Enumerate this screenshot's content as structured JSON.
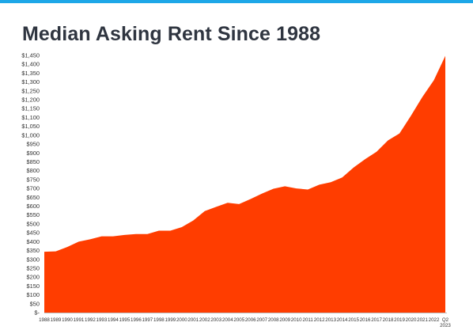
{
  "colors": {
    "top_bar": "#1ea7e8",
    "area_fill": "#ff3d00",
    "title_text": "#2f3540",
    "axis_line": "#bfbfbf",
    "tick_text": "#333333"
  },
  "chart_data": {
    "type": "area",
    "title": "Median Asking Rent Since 1988",
    "xlabel": "",
    "ylabel": "",
    "grid": false,
    "legend": "none",
    "ylim": [
      0,
      1450
    ],
    "y_ticks": [
      0,
      50,
      100,
      150,
      200,
      250,
      300,
      350,
      400,
      450,
      500,
      550,
      600,
      650,
      700,
      750,
      800,
      850,
      900,
      950,
      1000,
      1050,
      1100,
      1150,
      1200,
      1250,
      1300,
      1350,
      1400,
      1450
    ],
    "y_tick_labels": [
      "$-",
      "$50",
      "$100",
      "$150",
      "$200",
      "$250",
      "$300",
      "$350",
      "$400",
      "$450",
      "$500",
      "$550",
      "$600",
      "$650",
      "$700",
      "$750",
      "$800",
      "$850",
      "$900",
      "$950",
      "$1,000",
      "$1,050",
      "$1,100",
      "$1,150",
      "$1,200",
      "$1,250",
      "$1,300",
      "$1,350",
      "$1,400",
      "$1,450"
    ],
    "categories": [
      "1988",
      "1989",
      "1990",
      "1991",
      "1992",
      "1993",
      "1994",
      "1995",
      "1996",
      "1997",
      "1998",
      "1999",
      "2000",
      "2001",
      "2002",
      "2003",
      "2004",
      "2005",
      "2006",
      "2007",
      "2008",
      "2009",
      "2010",
      "2011",
      "2012",
      "2013",
      "2014",
      "2015",
      "2016",
      "2017",
      "2018",
      "2019",
      "2020",
      "2021",
      "2022",
      "Q2 2023"
    ],
    "category_labels": [
      [
        "1988"
      ],
      [
        "1989"
      ],
      [
        "1990"
      ],
      [
        "1991"
      ],
      [
        "1992"
      ],
      [
        "1993"
      ],
      [
        "1994"
      ],
      [
        "1995"
      ],
      [
        "1996"
      ],
      [
        "1997"
      ],
      [
        "1998"
      ],
      [
        "1999"
      ],
      [
        "2000"
      ],
      [
        "2001"
      ],
      [
        "2002"
      ],
      [
        "2003"
      ],
      [
        "2004"
      ],
      [
        "2005"
      ],
      [
        "2006"
      ],
      [
        "2007"
      ],
      [
        "2008"
      ],
      [
        "2009"
      ],
      [
        "2010"
      ],
      [
        "2011"
      ],
      [
        "2012"
      ],
      [
        "2013"
      ],
      [
        "2014"
      ],
      [
        "2015"
      ],
      [
        "2016"
      ],
      [
        "2017"
      ],
      [
        "2018"
      ],
      [
        "2019"
      ],
      [
        "2020"
      ],
      [
        "2021"
      ],
      [
        "2022"
      ],
      [
        "Q2",
        "2023"
      ]
    ],
    "values": [
      343,
      345,
      370,
      400,
      413,
      430,
      430,
      438,
      443,
      443,
      462,
      462,
      482,
      519,
      572,
      596,
      619,
      612,
      640,
      671,
      698,
      712,
      700,
      694,
      721,
      735,
      762,
      818,
      865,
      907,
      971,
      1010,
      1110,
      1216,
      1310,
      1447
    ]
  }
}
